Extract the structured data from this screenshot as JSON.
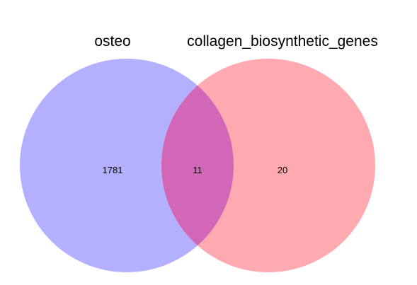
{
  "sets": [
    {
      "name": "osteo",
      "color": "#b3b0ff"
    },
    {
      "name": "collagen_biosynthetic_genes",
      "color": "#ffaab0"
    }
  ],
  "overlap_color": "#d267b8",
  "counts": {
    "only_osteo": "1781",
    "both": "11",
    "only_collagen": "20"
  }
}
